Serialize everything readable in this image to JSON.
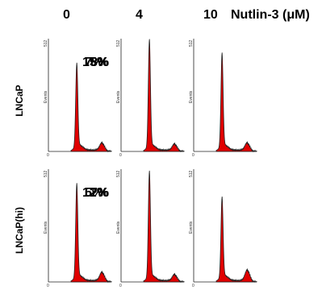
{
  "header": {
    "columns": [
      "0",
      "4",
      "10"
    ],
    "treatment": "Nutlin-3 (μM)"
  },
  "rows": [
    "LNCaP",
    "LNCaP(hi)"
  ],
  "y_axis": {
    "label": "Events",
    "max_tick": "512",
    "zero_tick": "0"
  },
  "chart_data": {
    "type": "histogram-grid",
    "colors": {
      "fill": "#e00000",
      "outline": "#222222"
    },
    "panels": [
      {
        "row": "LNCaP",
        "dose": "0",
        "percent": "15%",
        "g1_peak": 0.73,
        "g2_peak": 0.07
      },
      {
        "row": "LNCaP",
        "dose": "4",
        "percent": "8%",
        "g1_peak": 0.94,
        "g2_peak": 0.06
      },
      {
        "row": "LNCaP",
        "dose": "10",
        "percent": "7%",
        "g1_peak": 0.82,
        "g2_peak": 0.07
      },
      {
        "row": "LNCaP(hi)",
        "dose": "0",
        "percent": "12%",
        "g1_peak": 0.82,
        "g2_peak": 0.08
      },
      {
        "row": "LNCaP(hi)",
        "dose": "4",
        "percent": "7%",
        "g1_peak": 0.93,
        "g2_peak": 0.06
      },
      {
        "row": "LNCaP(hi)",
        "dose": "10",
        "percent": "5%",
        "g1_peak": 0.7,
        "g2_peak": 0.1
      }
    ]
  }
}
